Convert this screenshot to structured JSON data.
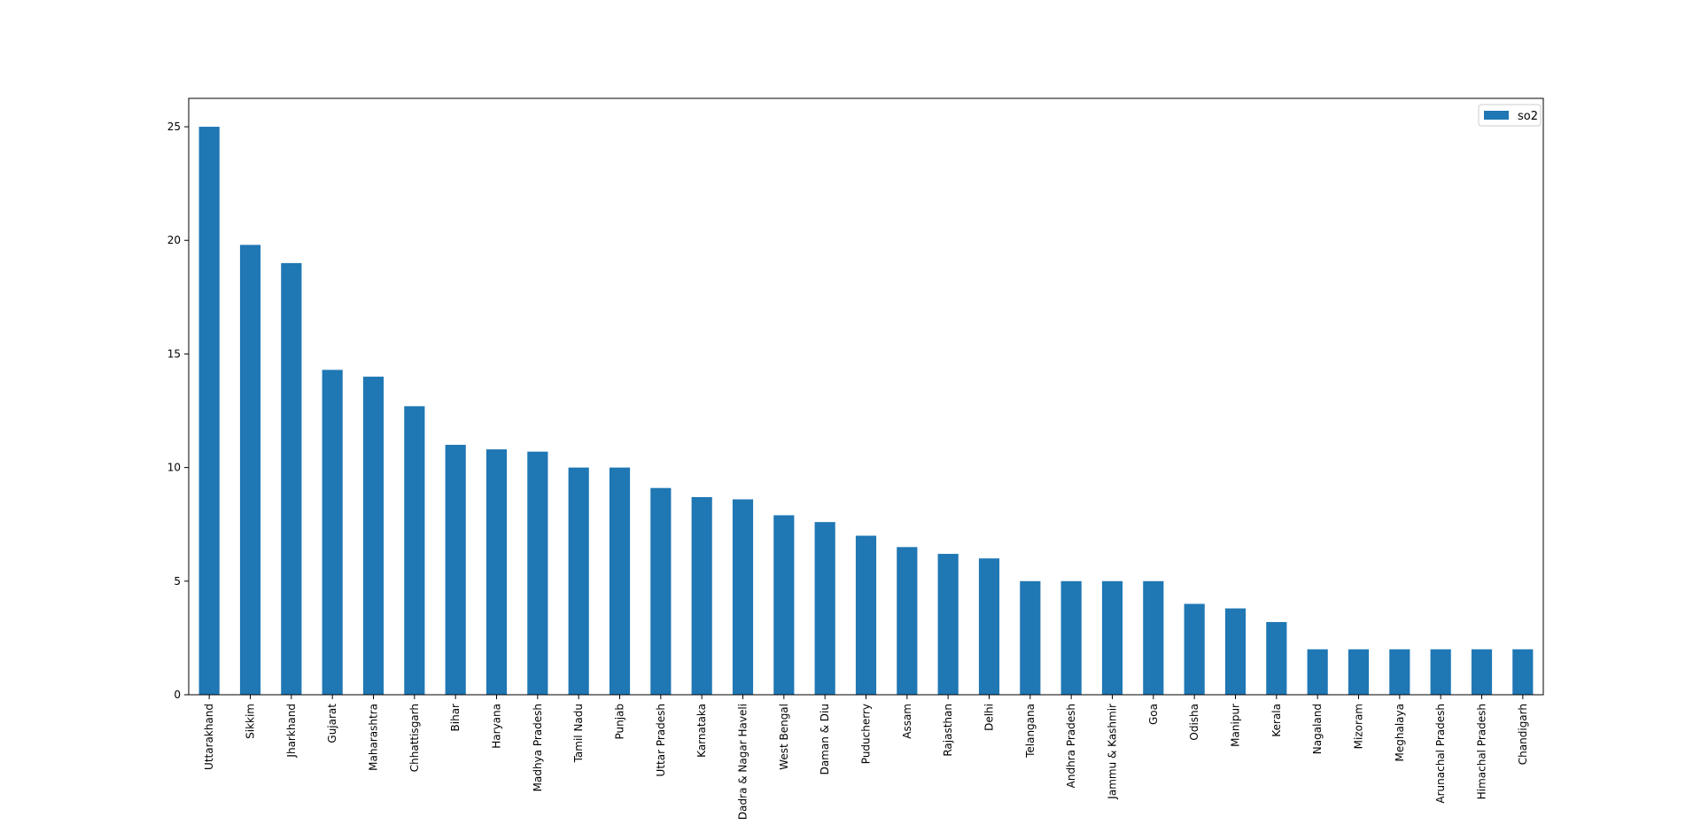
{
  "chart_data": {
    "type": "bar",
    "title": "",
    "xlabel": "",
    "ylabel": "",
    "categories": [
      "Uttarakhand",
      "Sikkim",
      "Jharkhand",
      "Gujarat",
      "Maharashtra",
      "Chhattisgarh",
      "Bihar",
      "Haryana",
      "Madhya Pradesh",
      "Tamil Nadu",
      "Punjab",
      "Uttar Pradesh",
      "Karnataka",
      "Dadra & Nagar Haveli",
      "West Bengal",
      "Daman & Diu",
      "Puducherry",
      "Assam",
      "Rajasthan",
      "Delhi",
      "Telangana",
      "Andhra Pradesh",
      "Jammu & Kashmir",
      "Goa",
      "Odisha",
      "Manipur",
      "Kerala",
      "Nagaland",
      "Mizoram",
      "Meghalaya",
      "Arunachal Pradesh",
      "Himachal Pradesh",
      "Chandigarh"
    ],
    "series": [
      {
        "name": "so2",
        "color": "#1f77b4",
        "values": [
          25.0,
          19.8,
          19.0,
          14.3,
          14.0,
          12.7,
          11.0,
          10.8,
          10.7,
          10.0,
          10.0,
          9.1,
          8.7,
          8.6,
          7.9,
          7.6,
          7.0,
          6.5,
          6.2,
          6.0,
          5.0,
          5.0,
          5.0,
          5.0,
          4.0,
          3.8,
          3.2,
          2.0,
          2.0,
          2.0,
          2.0,
          2.0,
          2.0
        ]
      }
    ],
    "ylim": [
      0,
      26.25
    ],
    "yticks": [
      0,
      5,
      10,
      15,
      20,
      25
    ],
    "grid": false,
    "legend_position": "top-right"
  }
}
